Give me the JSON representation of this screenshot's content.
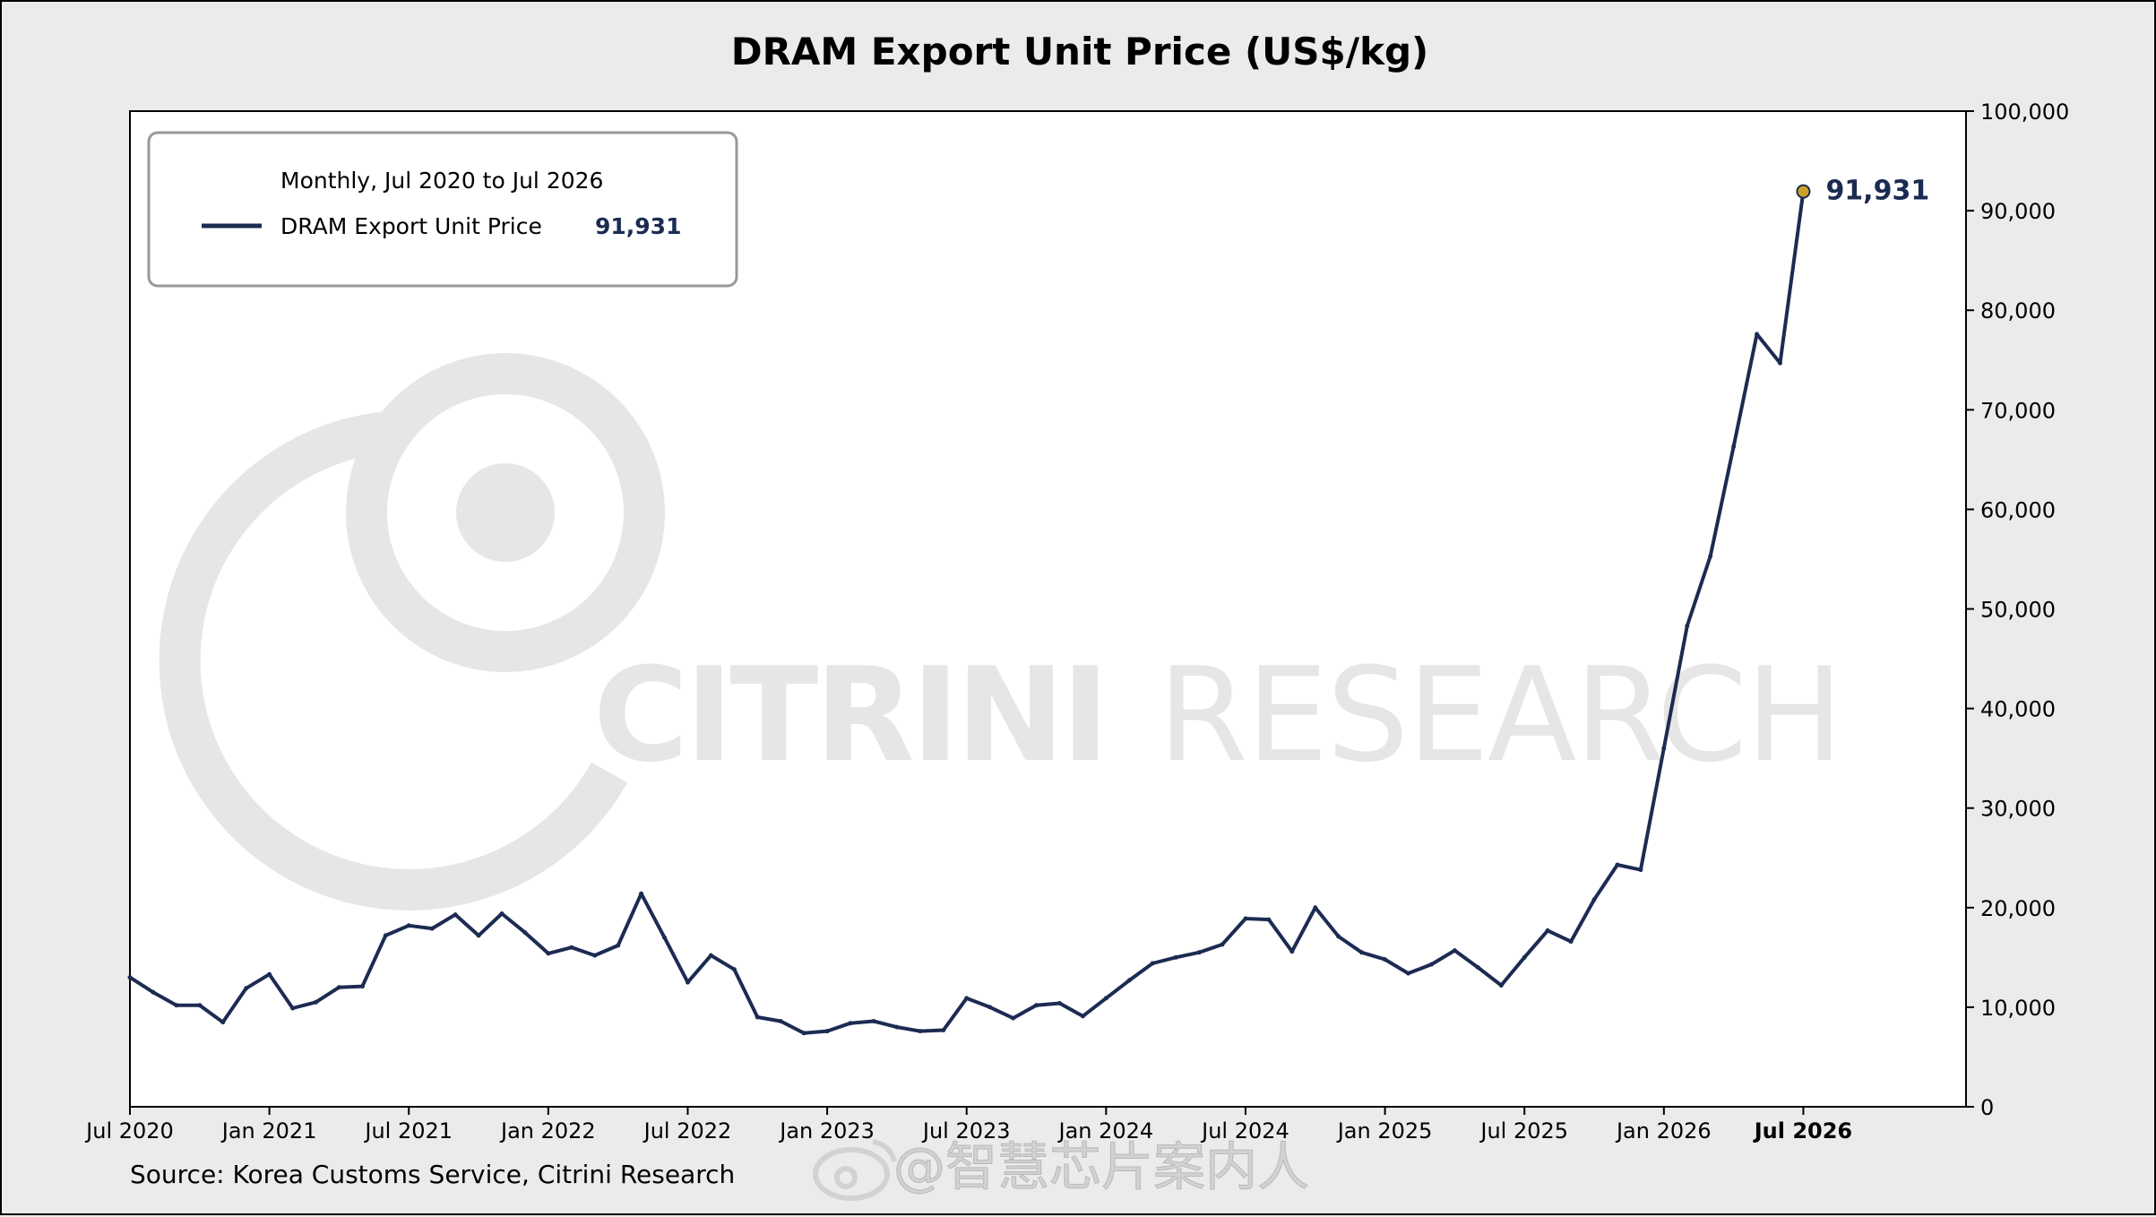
{
  "chart_data": {
    "type": "line",
    "title": "DRAM Export Unit Price (US$/kg)",
    "legend": {
      "placement": "top-left",
      "header": "Monthly, Jul 2020 to Jul 2026",
      "entries": [
        {
          "name": "DRAM Export Unit Price",
          "value_label": "91,931"
        }
      ]
    },
    "end_label": "91,931",
    "x_start": "2020-07",
    "x_end": "2026-07",
    "x_range": [
      "2020-07",
      "2027-02"
    ],
    "ylim": [
      0,
      100000
    ],
    "y_axis_side": "right",
    "y_ticks": [
      0,
      10000,
      20000,
      30000,
      40000,
      50000,
      60000,
      70000,
      80000,
      90000,
      100000
    ],
    "y_tick_labels": [
      "0",
      "10,000",
      "20,000",
      "30,000",
      "40,000",
      "50,000",
      "60,000",
      "70,000",
      "80,000",
      "90,000",
      "100,000"
    ],
    "x_ticks": [
      "2020-07",
      "2021-01",
      "2021-07",
      "2022-01",
      "2022-07",
      "2023-01",
      "2023-07",
      "2024-01",
      "2024-07",
      "2025-01",
      "2025-07",
      "2026-01",
      "2026-07"
    ],
    "x_tick_labels": [
      "Jul 2020",
      "Jan 2021",
      "Jul 2021",
      "Jan 2022",
      "Jul 2022",
      "Jan 2023",
      "Jul 2023",
      "Jan 2024",
      "Jul 2024",
      "Jan 2025",
      "Jul 2025",
      "Jan 2026",
      "Jul 2026"
    ],
    "highlighted_tick": "Jul 2026",
    "grid": false,
    "series": [
      {
        "name": "DRAM Export Unit Price",
        "color": "#1c2b52",
        "values": [
          13000,
          11500,
          10200,
          10200,
          8500,
          11900,
          13300,
          9900,
          10500,
          12000,
          12100,
          17200,
          18200,
          17900,
          19300,
          17200,
          19400,
          17500,
          15400,
          16000,
          15200,
          16200,
          21400,
          17000,
          12500,
          15200,
          13800,
          9000,
          8600,
          7400,
          7600,
          8400,
          8600,
          8000,
          7600,
          7700,
          10900,
          10000,
          8900,
          10200,
          10400,
          9100,
          10900,
          12700,
          14400,
          15000,
          15500,
          16300,
          18900,
          18800,
          15600,
          20000,
          17100,
          15500,
          14800,
          13400,
          14300,
          15700,
          14000,
          12200,
          15000,
          17700,
          16600,
          20800,
          24300,
          23800,
          36000,
          48300,
          55300,
          66300,
          77600,
          74700,
          91931
        ]
      }
    ]
  },
  "source_note": "Source: Korea Customs Service, Citrini Research",
  "watermark": {
    "brand_bold": "CITRINI",
    "brand_light": "RESEARCH",
    "social_handle": "@智慧芯片案内人"
  },
  "colors": {
    "line": "#1c2b52",
    "end_marker": "#c9a227",
    "watermark": "#e6e6e6",
    "background": "#ebebeb",
    "plot_bg": "#ffffff"
  }
}
